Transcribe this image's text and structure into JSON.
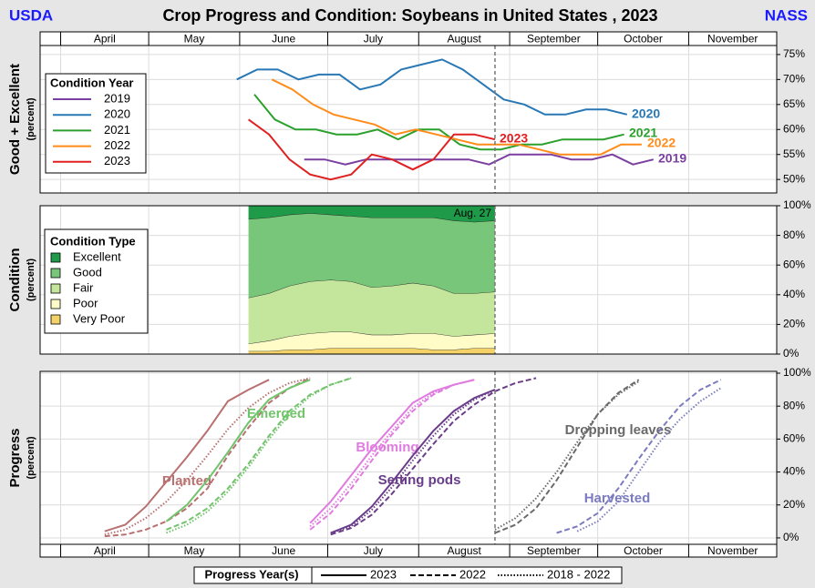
{
  "header": {
    "left": "USDA",
    "title": "Crop Progress and Condition: Soybeans in United States , 2023",
    "right": "NASS"
  },
  "x_axis": {
    "xlim": [
      84,
      335
    ],
    "months": [
      "April",
      "May",
      "June",
      "July",
      "August",
      "September",
      "October",
      "November"
    ],
    "month_starts": [
      91,
      121,
      152,
      182,
      213,
      244,
      274,
      305
    ],
    "current": 239
  },
  "chart_data": [
    {
      "type": "line",
      "ylabel": "Good + Excellent",
      "ylabel_sub": "(percent)",
      "legend_title": "Condition Year",
      "ylim": [
        47.3,
        76.8
      ],
      "yticks": [
        {
          "value": 50,
          "label": "50%"
        },
        {
          "value": 55,
          "label": "55%"
        },
        {
          "value": 60,
          "label": "60%"
        },
        {
          "value": 65,
          "label": "65%"
        },
        {
          "value": 70,
          "label": "70%"
        },
        {
          "value": 75,
          "label": "75%"
        }
      ],
      "series": [
        {
          "name": "2019",
          "color": "#7b3fa0",
          "x": [
            174,
            181,
            188,
            195,
            202,
            209,
            216,
            223,
            230,
            237,
            244,
            251,
            258,
            265,
            272,
            279,
            286,
            293
          ],
          "values": [
            54,
            54,
            53,
            54,
            54,
            54,
            54,
            54,
            54,
            53,
            55,
            55,
            55,
            54,
            54,
            55,
            53,
            54
          ]
        },
        {
          "name": "2020",
          "color": "#2878b5",
          "x": [
            151,
            158,
            165,
            172,
            179,
            186,
            193,
            200,
            207,
            214,
            221,
            228,
            235,
            242,
            249,
            256,
            263,
            270,
            277,
            284
          ],
          "values": [
            70,
            72,
            72,
            70,
            71,
            71,
            68,
            69,
            72,
            73,
            74,
            72,
            69,
            66,
            65,
            63,
            63,
            64,
            64,
            63
          ]
        },
        {
          "name": "2021",
          "color": "#2ca02c",
          "x": [
            157,
            164,
            171,
            178,
            185,
            192,
            199,
            206,
            213,
            220,
            227,
            234,
            241,
            248,
            255,
            262,
            269,
            276,
            283
          ],
          "values": [
            67,
            62,
            60,
            60,
            59,
            59,
            60,
            58,
            60,
            60,
            57,
            56,
            56,
            57,
            57,
            58,
            58,
            58,
            59
          ]
        },
        {
          "name": "2022",
          "color": "#ff8c1a",
          "x": [
            163,
            170,
            177,
            184,
            191,
            198,
            205,
            212,
            219,
            226,
            233,
            240,
            247,
            254,
            261,
            268,
            275,
            282,
            289
          ],
          "values": [
            70,
            68,
            65,
            63,
            62,
            61,
            59,
            60,
            59,
            58,
            57,
            57,
            57,
            56,
            55,
            55,
            55,
            57,
            57
          ]
        },
        {
          "name": "2023",
          "color": "#e02020",
          "x": [
            155,
            162,
            169,
            176,
            183,
            190,
            197,
            204,
            211,
            218,
            225,
            232,
            239
          ],
          "values": [
            62,
            59,
            54,
            51,
            50,
            51,
            55,
            54,
            52,
            54,
            59,
            59,
            58
          ]
        }
      ]
    },
    {
      "type": "area",
      "ylabel": "Condition",
      "ylabel_sub": "(percent)",
      "legend_title": "Condition Type",
      "annotation": "Aug. 27",
      "ylim": [
        0,
        100
      ],
      "yticks": [
        {
          "value": 0,
          "label": "0%"
        },
        {
          "value": 20,
          "label": "20%"
        },
        {
          "value": 40,
          "label": "40%"
        },
        {
          "value": 60,
          "label": "60%"
        },
        {
          "value": 80,
          "label": "80%"
        },
        {
          "value": 100,
          "label": "100%"
        }
      ],
      "x": [
        155,
        162,
        169,
        176,
        183,
        190,
        197,
        204,
        211,
        218,
        225,
        232,
        239
      ],
      "series": [
        {
          "name": "Excellent",
          "color": "#1f9a48",
          "values": [
            9,
            8,
            6,
            5,
            6,
            7,
            8,
            8,
            8,
            8,
            10,
            11,
            10
          ]
        },
        {
          "name": "Good",
          "color": "#78c67a",
          "values": [
            53,
            51,
            48,
            46,
            44,
            44,
            47,
            46,
            44,
            46,
            49,
            48,
            48
          ]
        },
        {
          "name": "Fair",
          "color": "#c4e59c",
          "values": [
            31,
            32,
            34,
            35,
            35,
            34,
            32,
            33,
            34,
            32,
            29,
            28,
            28
          ]
        },
        {
          "name": "Poor",
          "color": "#fffcc8",
          "values": [
            5,
            7,
            9,
            11,
            11,
            11,
            9,
            9,
            10,
            11,
            9,
            9,
            10
          ]
        },
        {
          "name": "Very Poor",
          "color": "#f4d268",
          "values": [
            2,
            2,
            3,
            3,
            4,
            4,
            4,
            4,
            4,
            3,
            3,
            4,
            4
          ]
        }
      ]
    },
    {
      "type": "progress",
      "ylabel": "Progress",
      "ylabel_sub": "(percent)",
      "ylim": [
        -3.9,
        101.1
      ],
      "yticks": [
        {
          "value": 0,
          "label": "0%"
        },
        {
          "value": 20,
          "label": "20%"
        },
        {
          "value": 40,
          "label": "40%"
        },
        {
          "value": 60,
          "label": "60%"
        },
        {
          "value": 80,
          "label": "80%"
        },
        {
          "value": 100,
          "label": "100%"
        }
      ],
      "legend": {
        "title": "Progress Year(s)",
        "entries": [
          {
            "name": "2023",
            "dash": "solid"
          },
          {
            "name": "2022",
            "dash": "dashed"
          },
          {
            "name": "2018 - 2022",
            "dash": "dotted"
          }
        ]
      },
      "stages": [
        {
          "name": "Planted",
          "color": "#b87070",
          "lines": [
            {
              "year": "2023",
              "x": [
                106,
                113,
                120,
                127,
                134,
                141,
                148,
                155,
                162
              ],
              "values": [
                4,
                8,
                19,
                34,
                49,
                65,
                83,
                90,
                96
              ]
            },
            {
              "year": "2022",
              "x": [
                106,
                113,
                120,
                127,
                134,
                141,
                148,
                155,
                162,
                169,
                176
              ],
              "values": [
                1,
                2,
                5,
                10,
                18,
                30,
                50,
                67,
                82,
                91,
                97
              ]
            },
            {
              "year": "2018 - 2022",
              "x": [
                106,
                113,
                120,
                127,
                134,
                141,
                148,
                155,
                162,
                169,
                176
              ],
              "values": [
                2,
                5,
                12,
                22,
                35,
                50,
                66,
                79,
                88,
                94,
                97
              ]
            }
          ]
        },
        {
          "name": "Emerged",
          "color": "#72c46c",
          "lines": [
            {
              "year": "2023",
              "x": [
                127,
                134,
                141,
                148,
                155,
                162,
                169,
                176
              ],
              "values": [
                10,
                20,
                35,
                52,
                70,
                84,
                91,
                96
              ]
            },
            {
              "year": "2022",
              "x": [
                127,
                134,
                141,
                148,
                155,
                162,
                169,
                176,
                183,
                190
              ],
              "values": [
                5,
                10,
                18,
                30,
                45,
                62,
                77,
                87,
                93,
                97
              ]
            },
            {
              "year": "2018 - 2022",
              "x": [
                127,
                134,
                141,
                148,
                155,
                162,
                169,
                176,
                183,
                190
              ],
              "values": [
                3,
                8,
                16,
                28,
                43,
                60,
                75,
                86,
                93,
                97
              ]
            }
          ]
        },
        {
          "name": "Blooming",
          "color": "#e07ce0",
          "lines": [
            {
              "year": "2023",
              "x": [
                176,
                183,
                190,
                197,
                204,
                211,
                218,
                225,
                232
              ],
              "values": [
                9,
                22,
                38,
                54,
                68,
                82,
                89,
                93,
                96
              ]
            },
            {
              "year": "2022",
              "x": [
                176,
                183,
                190,
                197,
                204,
                211,
                218,
                225,
                232
              ],
              "values": [
                5,
                15,
                30,
                47,
                63,
                77,
                87,
                93,
                96
              ]
            },
            {
              "year": "2018 - 2022",
              "x": [
                176,
                183,
                190,
                197,
                204,
                211,
                218,
                225,
                232
              ],
              "values": [
                7,
                18,
                33,
                50,
                65,
                79,
                88,
                93,
                96
              ]
            }
          ]
        },
        {
          "name": "Setting pods",
          "color": "#6a3d8a",
          "lines": [
            {
              "year": "2023",
              "x": [
                183,
                190,
                197,
                204,
                211,
                218,
                225,
                232,
                239
              ],
              "values": [
                3,
                8,
                19,
                34,
                50,
                65,
                77,
                85,
                90
              ]
            },
            {
              "year": "2022",
              "x": [
                183,
                190,
                197,
                204,
                211,
                218,
                225,
                232,
                239,
                246,
                253
              ],
              "values": [
                2,
                6,
                14,
                27,
                42,
                57,
                71,
                81,
                89,
                94,
                97
              ]
            },
            {
              "year": "2018 - 2022",
              "x": [
                183,
                190,
                197,
                204,
                211,
                218,
                225,
                232,
                239
              ],
              "values": [
                3,
                7,
                17,
                31,
                47,
                62,
                75,
                84,
                90
              ]
            }
          ]
        },
        {
          "name": "Dropping leaves",
          "color": "#6a6a6a",
          "lines": [
            {
              "year": "2022",
              "x": [
                239,
                246,
                253,
                260,
                267,
                274,
                281,
                288
              ],
              "values": [
                3,
                8,
                18,
                35,
                55,
                75,
                88,
                96
              ]
            },
            {
              "year": "2018 - 2022",
              "x": [
                239,
                246,
                253,
                260,
                267,
                274,
                281,
                288
              ],
              "values": [
                5,
                12,
                24,
                40,
                58,
                75,
                87,
                95
              ]
            }
          ]
        },
        {
          "name": "Harvested",
          "color": "#7b7bbf",
          "lines": [
            {
              "year": "2022",
              "x": [
                260,
                267,
                274,
                281,
                288,
                295,
                302,
                309,
                316
              ],
              "values": [
                3,
                7,
                15,
                30,
                48,
                65,
                80,
                90,
                96
              ]
            },
            {
              "year": "2018 - 2022",
              "x": [
                267,
                274,
                281,
                288,
                295,
                302,
                309,
                316
              ],
              "values": [
                4,
                10,
                22,
                40,
                58,
                72,
                83,
                91
              ]
            }
          ]
        }
      ]
    }
  ]
}
